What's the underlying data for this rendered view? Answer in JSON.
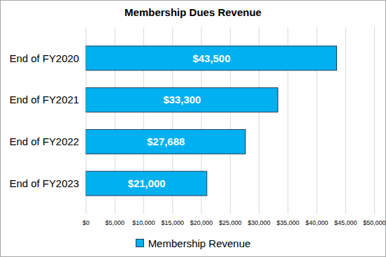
{
  "chart_data": {
    "type": "bar",
    "orientation": "horizontal",
    "title": "Membership Dues Revenue",
    "categories": [
      "End of FY2020",
      "End of FY2021",
      "End of FY2022",
      "End of FY2023"
    ],
    "series": [
      {
        "name": "Membership Revenue",
        "color": "#00b0f0",
        "values": [
          43500,
          33300,
          27688,
          21000
        ],
        "value_labels": [
          "$43,500",
          "$33,300",
          "$27,688",
          "$21,000"
        ]
      }
    ],
    "xlim": [
      0,
      50000
    ],
    "xticks": [
      {
        "value": 0,
        "label": "$0"
      },
      {
        "value": 5000,
        "label": "$5,000"
      },
      {
        "value": 10000,
        "label": "$10,000"
      },
      {
        "value": 15000,
        "label": "$15,000"
      },
      {
        "value": 20000,
        "label": "$20,000"
      },
      {
        "value": 25000,
        "label": "$25,000"
      },
      {
        "value": 30000,
        "label": "$30,000"
      },
      {
        "value": 35000,
        "label": "$35,000"
      },
      {
        "value": 40000,
        "label": "$40,000"
      },
      {
        "value": 45000,
        "label": "$45,000"
      },
      {
        "value": 50000,
        "label": "$50,000"
      }
    ],
    "grid": true,
    "data_labels": true,
    "legend": "bottom"
  }
}
